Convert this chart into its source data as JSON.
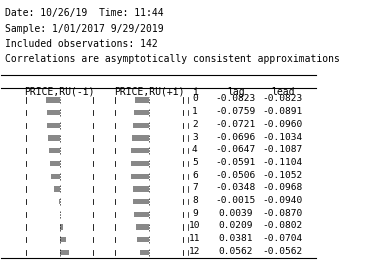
{
  "header_lines": [
    "Date: 10/26/19  Time: 11:44",
    "Sample: 1/01/2017 9/29/2019",
    "Included observations: 142",
    "Correlations are asymptotically consistent approximations"
  ],
  "col_headers": [
    "PRICE,RU(-i)",
    "PRICE,RU(+i)",
    "i",
    "lag",
    "lead"
  ],
  "rows": [
    {
      "i": 0,
      "lag": -0.0823,
      "lead": -0.0823
    },
    {
      "i": 1,
      "lag": -0.0759,
      "lead": -0.0891
    },
    {
      "i": 2,
      "lag": -0.0721,
      "lead": -0.096
    },
    {
      "i": 3,
      "lag": -0.0696,
      "lead": -0.1034
    },
    {
      "i": 4,
      "lag": -0.0647,
      "lead": -0.1087
    },
    {
      "i": 5,
      "lag": -0.0591,
      "lead": -0.1104
    },
    {
      "i": 6,
      "lag": -0.0506,
      "lead": -0.1052
    },
    {
      "i": 7,
      "lag": -0.0348,
      "lead": -0.0968
    },
    {
      "i": 8,
      "lag": -0.00154,
      "lead": -0.094
    },
    {
      "i": 9,
      "lag": 0.0039,
      "lead": -0.087
    },
    {
      "i": 10,
      "lag": 0.0209,
      "lead": -0.0802
    },
    {
      "i": 11,
      "lag": 0.0381,
      "lead": -0.0704
    },
    {
      "i": 12,
      "lag": 0.0562,
      "lead": -0.0562
    }
  ],
  "bar_range": 0.2,
  "background_color": "#ffffff",
  "bar_color": "#888888",
  "font_size_header": 7.0,
  "font_size_col": 7.0,
  "font_size_data": 6.8
}
